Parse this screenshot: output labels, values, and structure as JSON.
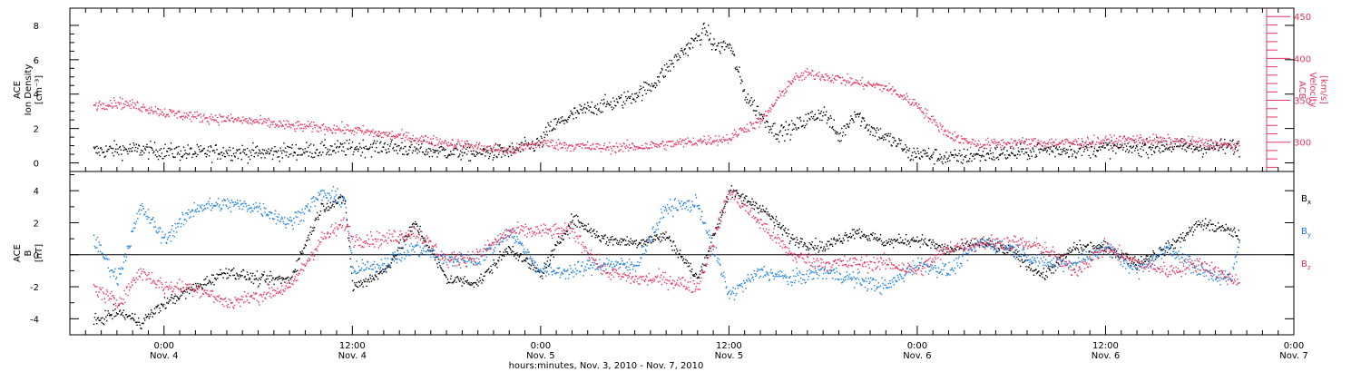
{
  "chart_data": [
    {
      "type": "scatter",
      "panel": "top",
      "ylabel_lines": [
        "ACE",
        "Ion Density",
        "[cm⁻³]"
      ],
      "ylim": [
        -0.5,
        9.0
      ],
      "yticks": [
        "0",
        "2",
        "4",
        "6",
        "8"
      ],
      "ytick_values": [
        0,
        2,
        4,
        6,
        8
      ],
      "right_axis": {
        "label_lines": [
          "ACE",
          "Velocity",
          "[km/s]"
        ],
        "ylim": [
          265,
          460
        ],
        "ticks": [
          "300",
          "350",
          "400",
          "450"
        ],
        "tick_values": [
          300,
          350,
          400,
          450
        ],
        "color": "#e8355e"
      },
      "series": [
        {
          "color": "#000000",
          "axis": "left",
          "x_hours": [
            -4.5,
            -3,
            -1.5,
            0,
            2,
            4,
            6,
            8,
            10,
            12,
            14,
            16,
            18,
            20,
            22,
            24,
            24.5,
            25,
            26,
            27,
            28,
            29,
            30,
            31,
            32,
            33,
            34,
            34.5,
            35,
            35.5,
            36,
            37,
            38,
            39,
            40,
            41,
            42,
            43,
            44,
            45,
            46,
            47,
            47.5,
            48,
            50,
            52,
            54,
            56,
            58,
            60,
            62,
            64,
            66,
            68,
            68.5
          ],
          "values": [
            0.7,
            0.8,
            0.8,
            0.7,
            0.6,
            0.7,
            0.6,
            0.7,
            0.8,
            0.9,
            1.0,
            0.8,
            0.7,
            0.6,
            0.7,
            1.2,
            2.0,
            2.3,
            2.8,
            3.2,
            3.4,
            3.6,
            4.0,
            4.5,
            5.5,
            6.5,
            7.3,
            7.8,
            6.8,
            6.8,
            6.9,
            4.0,
            2.8,
            1.8,
            2.0,
            2.6,
            3.0,
            1.5,
            3.0,
            2.0,
            1.5,
            1.0,
            0.5,
            0.6,
            0.3,
            0.5,
            0.6,
            0.8,
            0.8,
            0.9,
            0.9,
            1.0,
            0.9,
            1.0,
            0.9
          ],
          "scatter": 0.45
        },
        {
          "color": "#e8355e",
          "axis": "right",
          "x_hours": [
            -4.5,
            -3,
            -1.5,
            0,
            2,
            4,
            6,
            8,
            10,
            12,
            14,
            16,
            18,
            20,
            22,
            24,
            26,
            28,
            30,
            32,
            33,
            34,
            36,
            37,
            38,
            40,
            41,
            42,
            44,
            46,
            48,
            49,
            50,
            51,
            52,
            54,
            56,
            58,
            60,
            62,
            64,
            66,
            68,
            68.5
          ],
          "values": [
            345,
            348,
            343,
            336,
            331,
            328,
            325,
            320,
            318,
            315,
            310,
            305,
            300,
            295,
            290,
            300,
            296,
            294,
            295,
            298,
            300,
            302,
            305,
            318,
            325,
            375,
            382,
            380,
            372,
            366,
            345,
            325,
            310,
            302,
            298,
            300,
            300,
            300,
            302,
            304,
            302,
            300,
            296,
            298
          ],
          "scatter": 6
        }
      ]
    },
    {
      "type": "scatter",
      "panel": "bottom",
      "ylabel_lines": [
        "ACE",
        "B",
        "[nT]"
      ],
      "ylim": [
        -5.0,
        5.2
      ],
      "yticks": [
        "-4",
        "-2",
        "0",
        "2",
        "4"
      ],
      "ytick_values": [
        -4,
        -2,
        0,
        2,
        4
      ],
      "zero_line": true,
      "legend": [
        {
          "label": "B",
          "sub": "x",
          "color": "#000000"
        },
        {
          "label": "B",
          "sub": "y",
          "color": "#1a7fe0"
        },
        {
          "label": "B",
          "sub": "z",
          "color": "#e8355e"
        }
      ],
      "series": [
        {
          "name": "Bx",
          "color": "#000000",
          "x_hours": [
            -4.5,
            -3,
            -1.5,
            0,
            2,
            4,
            6,
            8,
            10,
            11.5,
            12,
            14,
            16,
            18,
            20,
            22,
            24,
            26,
            28,
            30,
            32,
            34,
            36,
            38,
            40,
            42,
            44,
            46,
            48,
            50,
            52,
            54,
            56,
            58,
            60,
            62,
            64,
            66,
            68,
            68.5
          ],
          "values": [
            -4.2,
            -3.5,
            -4.2,
            -3.0,
            -2.0,
            -1.0,
            -1.5,
            -1.5,
            3.0,
            3.5,
            -2.0,
            -1.0,
            2.0,
            -1.5,
            -1.7,
            0.5,
            -1.2,
            2.3,
            1.0,
            0.8,
            1.2,
            -1.5,
            4.0,
            3.0,
            1.0,
            0.5,
            1.5,
            0.8,
            1.0,
            0.3,
            0.8,
            0.2,
            -1.3,
            0.5,
            0.5,
            -0.5,
            0.5,
            2.0,
            1.5,
            1.2
          ],
          "scatter": 0.35
        },
        {
          "name": "By",
          "color": "#1a7fe0",
          "x_hours": [
            -4.5,
            -3,
            -1.5,
            0,
            2,
            4,
            6,
            8,
            10,
            11.5,
            12,
            14,
            16,
            18,
            20,
            22,
            24,
            26,
            28,
            30,
            32,
            34,
            36,
            38,
            40,
            42,
            44,
            46,
            48,
            50,
            52,
            54,
            56,
            58,
            60,
            62,
            64,
            66,
            68,
            68.5
          ],
          "values": [
            1.0,
            -1.5,
            3.0,
            1.0,
            3.0,
            3.2,
            3.0,
            2.0,
            3.8,
            3.5,
            -1.0,
            -0.5,
            0.5,
            -0.3,
            -0.3,
            1.5,
            -1.0,
            -1.0,
            -0.5,
            -0.7,
            3.0,
            3.2,
            -2.5,
            -1.0,
            -1.5,
            -1.0,
            -1.5,
            -2.0,
            -0.5,
            -1.0,
            0.8,
            0.5,
            -0.5,
            -0.5,
            0.5,
            -1.0,
            0.5,
            -1.0,
            -1.5,
            0.8
          ],
          "scatter": 0.45
        },
        {
          "name": "Bz",
          "color": "#e8355e",
          "x_hours": [
            -4.5,
            -3,
            -1.5,
            0,
            2,
            4,
            6,
            8,
            10,
            11.5,
            12,
            14,
            16,
            18,
            20,
            22,
            24,
            26,
            28,
            30,
            32,
            34,
            36,
            38,
            40,
            42,
            44,
            46,
            48,
            50,
            52,
            54,
            56,
            58,
            60,
            62,
            64,
            66,
            68,
            68.5
          ],
          "values": [
            -2.0,
            -3.0,
            -1.0,
            -2.0,
            -2.0,
            -3.0,
            -2.5,
            -2.0,
            1.0,
            2.0,
            1.0,
            1.0,
            1.5,
            -0.3,
            0.0,
            1.5,
            1.5,
            1.5,
            -1.0,
            -1.5,
            -1.5,
            -2.0,
            4.0,
            2.0,
            0.0,
            -0.5,
            -0.5,
            -0.5,
            -1.0,
            0.5,
            0.8,
            0.8,
            0.5,
            -1.0,
            0.5,
            -0.5,
            -1.0,
            -0.5,
            -1.5,
            -1.5
          ],
          "scatter": 0.45
        }
      ]
    }
  ],
  "x_axis": {
    "range_hours": [
      -6,
      72
    ],
    "tick_hours": [
      0,
      12,
      24,
      36,
      48,
      60,
      72
    ],
    "tick_labels": [
      [
        "0:00",
        "Nov. 4"
      ],
      [
        "12:00",
        "Nov. 4"
      ],
      [
        "0:00",
        "Nov. 5"
      ],
      [
        "12:00",
        "Nov. 5"
      ],
      [
        "0:00",
        "Nov. 6"
      ],
      [
        "12:00",
        "Nov. 6"
      ],
      [
        "0:00",
        "Nov. 7"
      ]
    ],
    "minor_step_hours": 1,
    "label": "hours:minutes, Nov. 3, 2010 - Nov. 7, 2010"
  }
}
